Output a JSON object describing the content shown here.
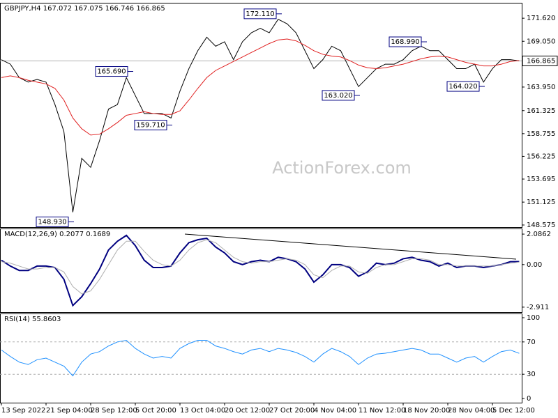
{
  "chart_data": [
    {
      "type": "line",
      "title": "GBPJPY,H4 167.072 167.075 166.746 166.865",
      "watermark": "ActionForex.com",
      "ylim": [
        148.34,
        173.34
      ],
      "yticks": [
        {
          "value": 171.62,
          "label": "171.620"
        },
        {
          "value": 169.05,
          "label": "169.050"
        },
        {
          "value": 163.95,
          "label": "163.950"
        },
        161.325,
        158.755,
        156.225,
        153.695,
        151.125,
        148.575
      ],
      "last_price": 166.865,
      "series": [
        {
          "color": "#000000",
          "values": [
            167.0,
            166.5,
            165.0,
            164.5,
            164.8,
            164.5,
            162,
            159,
            150,
            156,
            155,
            158,
            161.5,
            162,
            165,
            163,
            161,
            161,
            161,
            160.5,
            163.5,
            166,
            168,
            169.5,
            168.5,
            169,
            167,
            169,
            170,
            170.5,
            170,
            171.5,
            171,
            170,
            168,
            166,
            167,
            168.5,
            168,
            166,
            164,
            165,
            166,
            166.5,
            166.5,
            167,
            168,
            168.5,
            168,
            168,
            167,
            166,
            166,
            166.5,
            164.5,
            166,
            167,
            167,
            166.865
          ]
        },
        {
          "color": "#e02020",
          "values": [
            165.0,
            165.2,
            165.0,
            164.7,
            164.5,
            164.3,
            163.8,
            162.5,
            160.5,
            159.3,
            158.6,
            158.7,
            159.3,
            160.0,
            160.8,
            161.0,
            161.2,
            161.0,
            160.9,
            160.9,
            161.3,
            162.5,
            163.8,
            165.0,
            165.8,
            166.3,
            166.8,
            167.3,
            167.8,
            168.3,
            168.8,
            169.2,
            169.3,
            169.1,
            168.6,
            168.0,
            167.6,
            167.4,
            167.3,
            166.9,
            166.4,
            166.1,
            166.0,
            166.1,
            166.3,
            166.5,
            166.8,
            167.1,
            167.3,
            167.4,
            167.3,
            167.0,
            166.7,
            166.5,
            166.3,
            166.3,
            166.5,
            166.8,
            166.9
          ]
        }
      ],
      "annotations": [
        {
          "value": 172.11,
          "label": "172.110"
        },
        {
          "value": 165.69,
          "label": "165.690"
        },
        {
          "value": 148.93,
          "label": "148.930"
        },
        {
          "value": 159.71,
          "label": "159.710"
        },
        {
          "value": 163.02,
          "label": "163.020"
        },
        {
          "value": 168.99,
          "label": "168.990"
        },
        {
          "value": 164.02,
          "label": "164.020"
        }
      ]
    },
    {
      "type": "line",
      "title": "MACD(12,26,9) 0.2077 0.1689",
      "ylim": [
        -3.25,
        2.47
      ],
      "yticks": [
        2.0862,
        {
          "value": 0,
          "label": "0.00"
        },
        -2.911
      ],
      "series": [
        {
          "color": "#000080",
          "values": [
            0.3,
            -0.1,
            -0.4,
            -0.4,
            -0.1,
            -0.1,
            -0.2,
            -1.0,
            -2.8,
            -2.2,
            -1.3,
            -0.3,
            1.0,
            1.6,
            2.0,
            1.3,
            0.3,
            -0.2,
            -0.2,
            -0.1,
            0.8,
            1.5,
            1.7,
            1.8,
            1.2,
            0.8,
            0.2,
            0.0,
            0.2,
            0.3,
            0.2,
            0.5,
            0.4,
            0.2,
            -0.3,
            -1.2,
            -0.7,
            0.0,
            0.0,
            -0.2,
            -0.8,
            -0.5,
            0.1,
            0.0,
            0.1,
            0.4,
            0.5,
            0.3,
            0.2,
            -0.1,
            0.1,
            -0.2,
            -0.1,
            -0.1,
            -0.2,
            -0.1,
            0.0,
            0.2,
            0.2077
          ]
        },
        {
          "color": "#b0b0b0",
          "values": [
            0.2,
            0.1,
            -0.1,
            -0.3,
            -0.3,
            -0.2,
            -0.2,
            -0.5,
            -1.5,
            -2.0,
            -1.8,
            -1.0,
            0.0,
            1.0,
            1.6,
            1.6,
            0.9,
            0.3,
            0.0,
            -0.1,
            0.3,
            1.0,
            1.5,
            1.7,
            1.5,
            1.0,
            0.5,
            0.2,
            0.1,
            0.2,
            0.2,
            0.3,
            0.4,
            0.3,
            0.0,
            -0.7,
            -0.9,
            -0.4,
            -0.1,
            -0.1,
            -0.5,
            -0.6,
            -0.2,
            0.0,
            0.0,
            0.2,
            0.4,
            0.4,
            0.3,
            0.0,
            0.0,
            -0.1,
            -0.1,
            -0.1,
            -0.1,
            -0.1,
            0.0,
            0.1,
            0.1689
          ]
        }
      ]
    },
    {
      "type": "line",
      "title": "RSI(14) 55.8603",
      "ylim": [
        -5.2,
        105.2
      ],
      "yticks": [
        100,
        70,
        30,
        0
      ],
      "levels": [
        70,
        30
      ],
      "categories": [
        "13 Sep 2022",
        null,
        null,
        null,
        null,
        "21 Sep 04:00",
        null,
        null,
        null,
        null,
        "28 Sep 12:00",
        null,
        null,
        null,
        null,
        "5 Oct 20:00",
        null,
        null,
        null,
        null,
        "13 Oct 04:00",
        null,
        null,
        null,
        null,
        "20 Oct 12:00",
        null,
        null,
        null,
        null,
        "27 Oct 20:00",
        null,
        null,
        null,
        null,
        "4 Nov 04:00",
        null,
        null,
        null,
        null,
        "11 Nov 12:00",
        null,
        null,
        null,
        null,
        "18 Nov 20:00",
        null,
        null,
        null,
        null,
        "28 Nov 04:00",
        null,
        null,
        null,
        null,
        "5 Dec 12:00",
        null,
        null,
        null
      ],
      "series": [
        {
          "color": "#1e90ff",
          "values": [
            60,
            52,
            45,
            42,
            48,
            50,
            45,
            40,
            28,
            45,
            55,
            58,
            65,
            70,
            72,
            62,
            55,
            50,
            52,
            50,
            62,
            68,
            72,
            72,
            65,
            62,
            58,
            55,
            60,
            62,
            58,
            62,
            60,
            57,
            52,
            45,
            55,
            62,
            58,
            52,
            42,
            50,
            55,
            56,
            58,
            60,
            62,
            60,
            55,
            55,
            50,
            45,
            50,
            52,
            45,
            52,
            58,
            60,
            55.8603
          ]
        }
      ]
    }
  ]
}
